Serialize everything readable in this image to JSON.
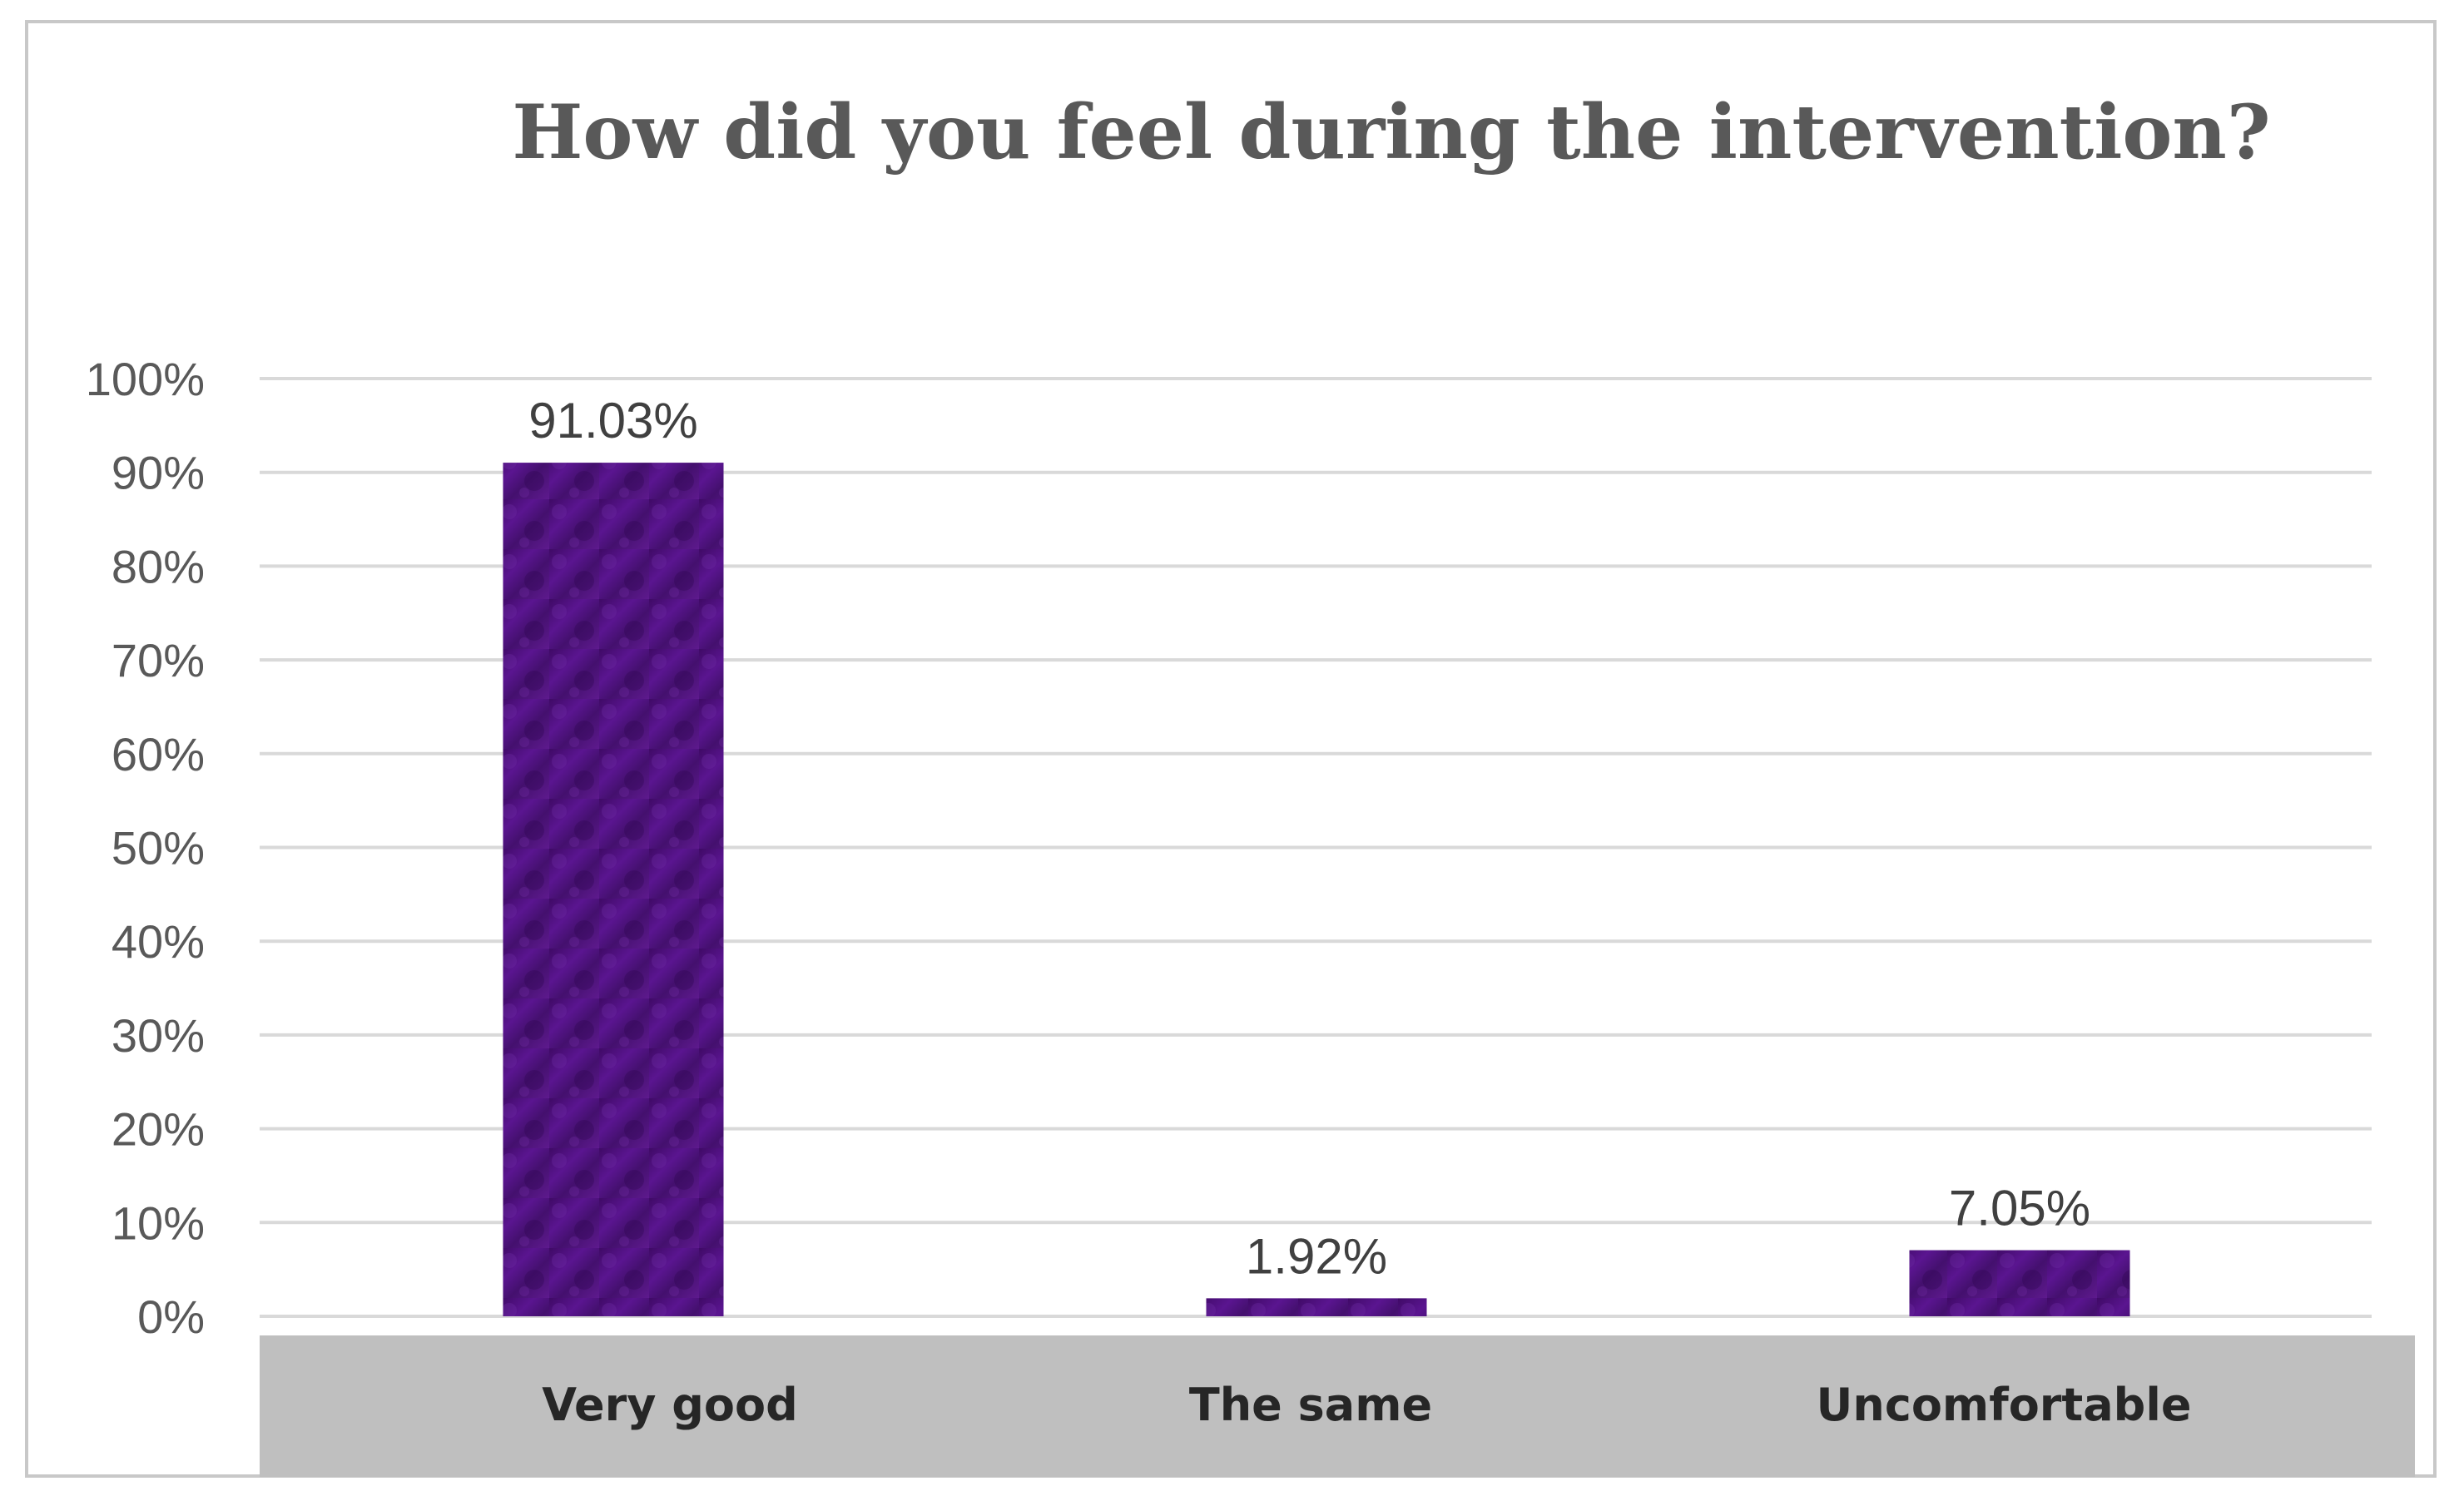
{
  "chart_data": {
    "type": "bar",
    "title": "How did you feel during the intervention?",
    "xlabel": "",
    "ylabel": "",
    "categories": [
      "Very good",
      "The same",
      "Uncomfortable"
    ],
    "values": [
      91.03,
      1.92,
      7.05
    ],
    "data_labels": [
      "91.03%",
      "1.92%",
      "7.05%"
    ],
    "ylim": [
      0,
      100
    ],
    "yticks": [
      0,
      10,
      20,
      30,
      40,
      50,
      60,
      70,
      80,
      90,
      100
    ],
    "ytick_labels": [
      "0%",
      "10%",
      "20%",
      "30%",
      "40%",
      "50%",
      "60%",
      "70%",
      "80%",
      "90%",
      "100%"
    ],
    "grid": true,
    "legend": "none",
    "colors": {
      "bar": "#4b0f78",
      "bar_highlight": "#6a1c9c",
      "category_band": "#bfbfbf",
      "grid": "#d9d9d9",
      "title": "#595959"
    }
  }
}
